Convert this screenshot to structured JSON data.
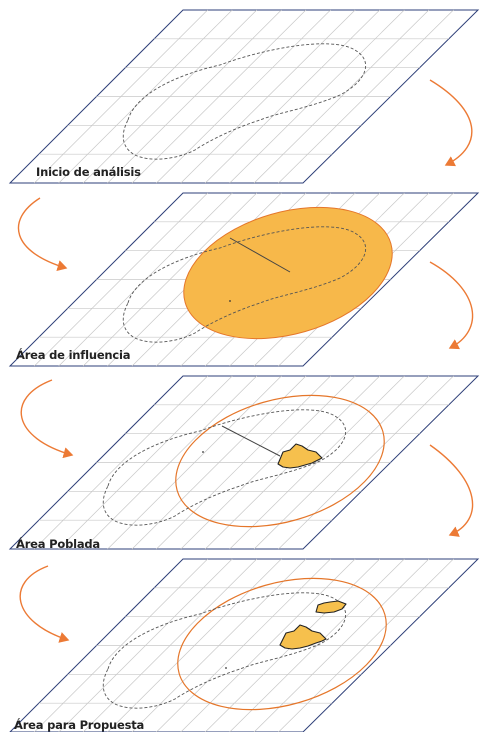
{
  "layers": [
    {
      "label": "Inicio de análisis"
    },
    {
      "label": "Área de influencia"
    },
    {
      "label": "Área Poblada"
    },
    {
      "label": "Área para Propuesta"
    }
  ],
  "colors": {
    "frame": "#2e3f78",
    "grid": "#c8c8c8",
    "boundary": "#555555",
    "influence_fill": "#f7b84a",
    "influence_stroke": "#e5762a",
    "arrow": "#ec7a35",
    "populated": "#f6c04d"
  },
  "icons": {
    "arrow": "curved-arrow-icon"
  }
}
